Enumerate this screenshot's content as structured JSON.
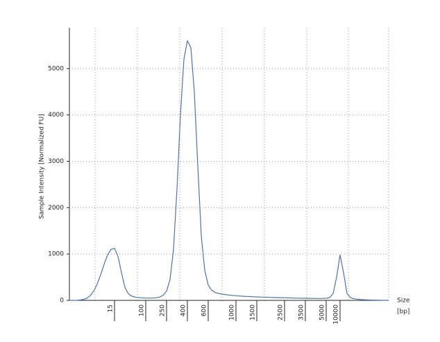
{
  "chart_data": {
    "type": "line",
    "y_label": "Sample Intensity [Normalized FU]",
    "x_label": "Size",
    "x_unit": "[bp]",
    "color": "#4a72b8",
    "ylim": [
      0,
      5880
    ],
    "yticks": [
      0,
      1000,
      2000,
      3000,
      4000,
      5000
    ],
    "grid": true,
    "categories": [
      null,
      null,
      null,
      null,
      null,
      null,
      null,
      null,
      null,
      null,
      null,
      null,
      null,
      "15",
      null,
      null,
      null,
      null,
      null,
      null,
      null,
      null,
      "100",
      null,
      null,
      null,
      null,
      null,
      "250",
      null,
      null,
      null,
      null,
      null,
      "400",
      null,
      null,
      null,
      null,
      null,
      "600",
      null,
      null,
      null,
      null,
      null,
      null,
      null,
      "1000",
      null,
      null,
      null,
      null,
      null,
      "1500",
      null,
      null,
      null,
      null,
      null,
      null,
      null,
      "2500",
      null,
      null,
      null,
      null,
      null,
      "3500",
      null,
      null,
      null,
      null,
      null,
      "5000",
      null,
      null,
      null,
      "10000",
      null,
      null,
      null,
      null,
      null,
      null,
      null,
      null,
      null,
      null,
      null,
      null,
      null,
      null
    ],
    "values": [
      0,
      0,
      2,
      8,
      20,
      45,
      100,
      200,
      350,
      550,
      780,
      980,
      1100,
      1120,
      950,
      600,
      280,
      140,
      90,
      70,
      60,
      55,
      50,
      50,
      50,
      55,
      70,
      110,
      200,
      450,
      1100,
      2400,
      4000,
      5200,
      5600,
      5450,
      4500,
      2900,
      1400,
      650,
      330,
      220,
      170,
      150,
      135,
      125,
      115,
      108,
      100,
      95,
      90,
      86,
      82,
      78,
      75,
      72,
      70,
      67,
      65,
      62,
      60,
      58,
      56,
      54,
      52,
      50,
      48,
      46,
      45,
      44,
      43,
      42,
      41,
      42,
      45,
      60,
      150,
      500,
      980,
      600,
      150,
      60,
      35,
      25,
      18,
      14,
      10,
      8,
      6,
      4,
      3,
      2,
      1
    ]
  }
}
